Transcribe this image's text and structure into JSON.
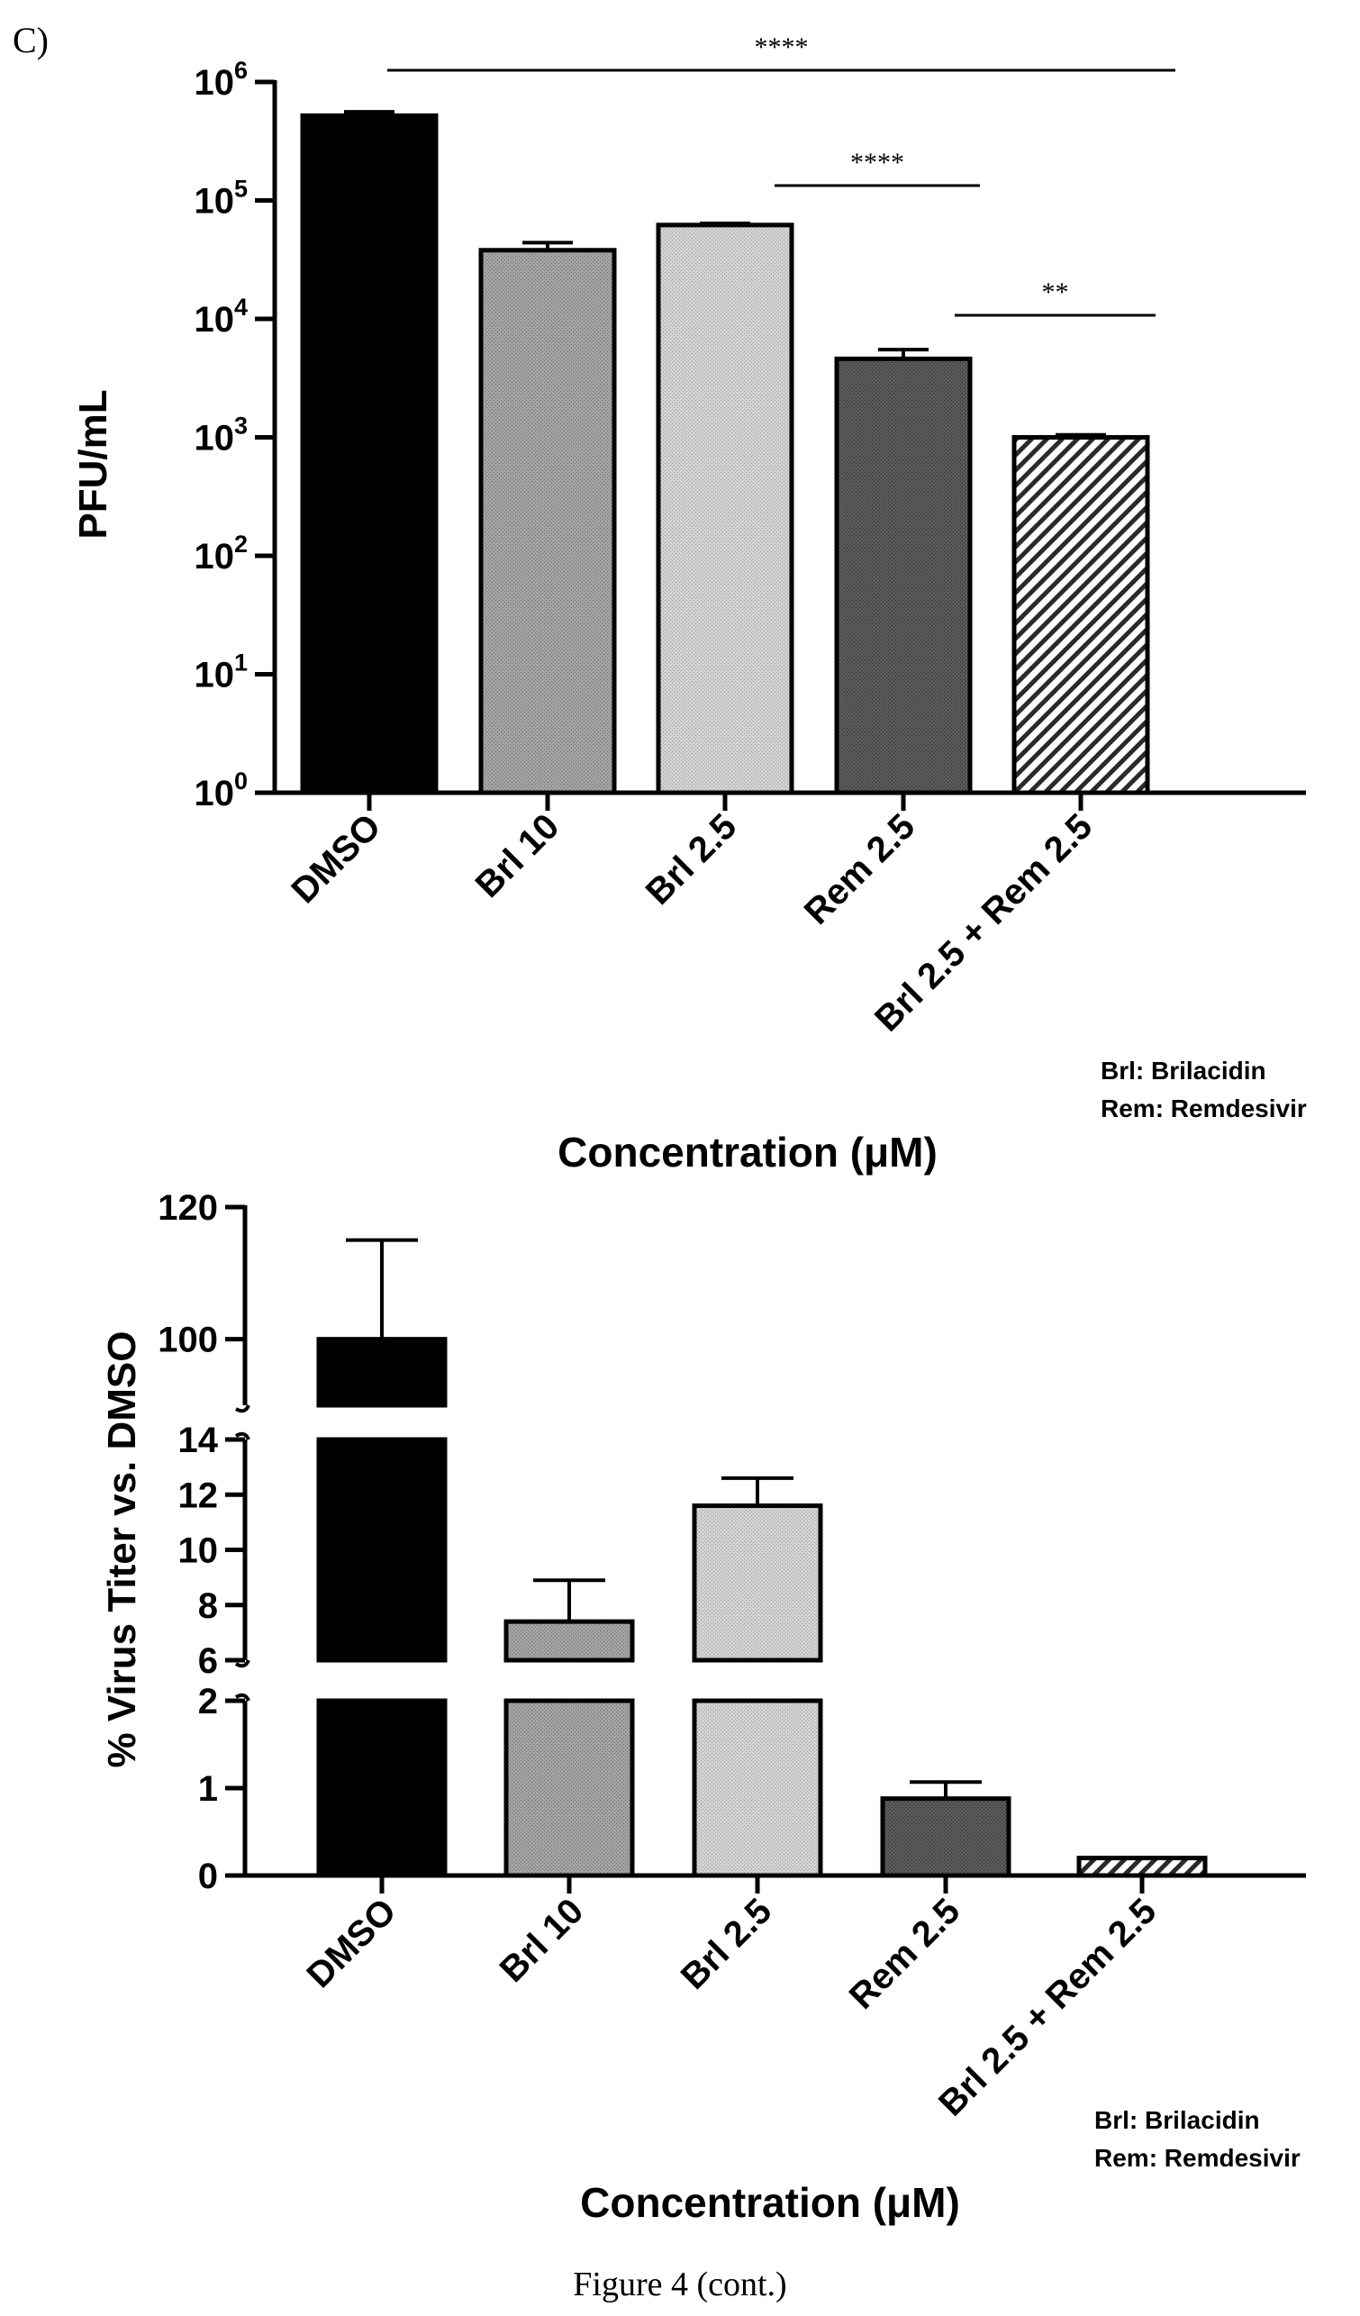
{
  "panel_label": "C)",
  "figure_caption": "Figure 4 (cont.)",
  "chart_data": [
    {
      "type": "bar",
      "scale": "log",
      "categories": [
        "DMSO",
        "Brl 10",
        "Brl 2.5",
        "Rem 2.5",
        "Brl 2.5 + Rem 2.5"
      ],
      "values": [
        520000,
        38000,
        62000,
        4600,
        1000
      ],
      "errors": [
        560000,
        44000,
        64000,
        5500,
        1050
      ],
      "ylabel": "PFU/mL",
      "xlabel": "Concentration (μM)",
      "ylim": [
        1,
        1000000
      ],
      "yticks": [
        {
          "value": 1,
          "base": "10",
          "exp": "0"
        },
        {
          "value": 10,
          "base": "10",
          "exp": "1"
        },
        {
          "value": 100,
          "base": "10",
          "exp": "2"
        },
        {
          "value": 1000,
          "base": "10",
          "exp": "3"
        },
        {
          "value": 10000,
          "base": "10",
          "exp": "4"
        },
        {
          "value": 100000,
          "base": "10",
          "exp": "5"
        },
        {
          "value": 1000000,
          "base": "10",
          "exp": "6"
        }
      ],
      "significance": [
        {
          "from": 0,
          "to": 4,
          "label": "****"
        },
        {
          "from": 2,
          "to": 3,
          "label": "****"
        },
        {
          "from": 3,
          "to": 4,
          "label": "**"
        }
      ],
      "legend_note": [
        "Brl: Brilacidin",
        "Rem: Remdesivir"
      ],
      "colors": [
        "#000000",
        "#9a9a9a",
        "#cfcfcf",
        "#555555",
        "hatched"
      ],
      "grid": false
    },
    {
      "type": "bar",
      "scale": "broken-linear",
      "categories": [
        "DMSO",
        "Brl 10",
        "Brl 2.5",
        "Rem 2.5",
        "Brl 2.5 + Rem 2.5"
      ],
      "values": [
        100,
        7.4,
        11.6,
        0.88,
        0.2
      ],
      "errors": [
        115,
        8.9,
        12.6,
        1.07,
        0.2
      ],
      "ylabel": "% Virus Titer vs. DMSO",
      "xlabel": "Concentration (μM)",
      "yticks": [
        "0",
        "1",
        "2",
        "6",
        "8",
        "10",
        "12",
        "14",
        "100",
        "120"
      ],
      "legend_note": [
        "Brl: Brilacidin",
        "Rem: Remdesivir"
      ],
      "colors": [
        "#000000",
        "#9a9a9a",
        "#cfcfcf",
        "#555555",
        "hatched"
      ],
      "grid": false
    }
  ]
}
